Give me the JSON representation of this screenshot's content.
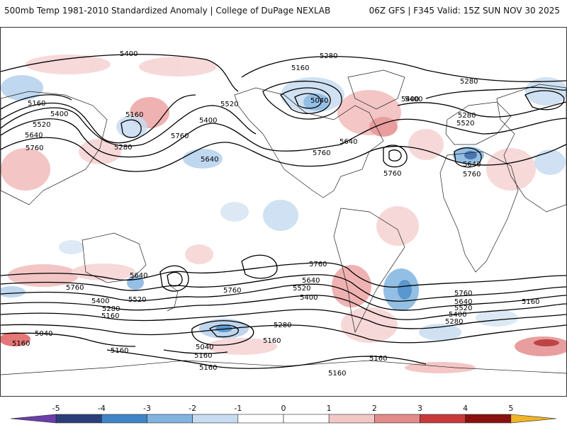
{
  "header": {
    "title": "500mb Temp 1981-2010 Standardized Anomaly | College of DuPage NEXLAB",
    "run_info": "06Z GFS | F345 Valid: 15Z SUN NOV 30 2025"
  },
  "colorbar": {
    "ticks": [
      "-5",
      "-4",
      "-3",
      "-2",
      "-1",
      "0",
      "1",
      "2",
      "3",
      "4",
      "5"
    ],
    "colors": [
      "#6b3fa8",
      "#2c3e7a",
      "#3e86c6",
      "#82b4e0",
      "#c7dcf0",
      "#ffffff",
      "#ffffff",
      "#f4c7c7",
      "#e28b8b",
      "#c93a3a",
      "#8a1010",
      "#f0b428"
    ]
  },
  "contour_labels": [
    {
      "id": "5400-a",
      "text": "5400"
    },
    {
      "id": "5280-a",
      "text": "5280"
    },
    {
      "id": "5160-a",
      "text": "5160"
    },
    {
      "id": "5040-a",
      "text": "5040"
    },
    {
      "id": "5400-b",
      "text": "5400"
    },
    {
      "id": "5280-b",
      "text": "5280"
    },
    {
      "id": "5520-a",
      "text": "5520"
    },
    {
      "id": "5400-c",
      "text": "5400"
    },
    {
      "id": "5160-b",
      "text": "5160"
    },
    {
      "id": "5400-d",
      "text": "5400"
    },
    {
      "id": "5520-b",
      "text": "5520"
    },
    {
      "id": "5640-a",
      "text": "5640"
    },
    {
      "id": "5160-c",
      "text": "5160"
    },
    {
      "id": "5760-a",
      "text": "5760"
    },
    {
      "id": "5280-c",
      "text": "5280"
    },
    {
      "id": "5760-b",
      "text": "5760"
    },
    {
      "id": "5640-b",
      "text": "5640"
    },
    {
      "id": "5760-c",
      "text": "5760"
    },
    {
      "id": "5640-c",
      "text": "5640"
    },
    {
      "id": "5760-d",
      "text": "5760"
    },
    {
      "id": "5400-e",
      "text": "5400"
    },
    {
      "id": "5280-d",
      "text": "5280"
    },
    {
      "id": "5520-c",
      "text": "5520"
    },
    {
      "id": "5640-d",
      "text": "5640"
    },
    {
      "id": "5760-e",
      "text": "5760"
    },
    {
      "id": "5760-f",
      "text": "5760"
    },
    {
      "id": "5640-e",
      "text": "5640"
    },
    {
      "id": "5760-g",
      "text": "5760"
    },
    {
      "id": "5640-f",
      "text": "5640"
    },
    {
      "id": "5520-d",
      "text": "5520"
    },
    {
      "id": "5400-f",
      "text": "5400"
    },
    {
      "id": "5760-h",
      "text": "5760"
    },
    {
      "id": "5400-g",
      "text": "5400"
    },
    {
      "id": "5280-e",
      "text": "5280"
    },
    {
      "id": "5160-d",
      "text": "5160"
    },
    {
      "id": "5520-e",
      "text": "5520"
    },
    {
      "id": "5760-i",
      "text": "5760"
    },
    {
      "id": "5640-g",
      "text": "5640"
    },
    {
      "id": "5520-f",
      "text": "5520"
    },
    {
      "id": "5400-h",
      "text": "5400"
    },
    {
      "id": "5280-f",
      "text": "5280"
    },
    {
      "id": "5160-e",
      "text": "5160"
    },
    {
      "id": "5040-b",
      "text": "5040"
    },
    {
      "id": "5160-f",
      "text": "5160"
    },
    {
      "id": "5280-g",
      "text": "5280"
    },
    {
      "id": "5040-c",
      "text": "5040"
    },
    {
      "id": "5160-g",
      "text": "5160"
    },
    {
      "id": "5160-h",
      "text": "5160"
    },
    {
      "id": "5160-i",
      "text": "5160"
    },
    {
      "id": "5160-j",
      "text": "5160"
    },
    {
      "id": "5160-k",
      "text": "5160"
    },
    {
      "id": "5160-l",
      "text": "5160"
    }
  ]
}
